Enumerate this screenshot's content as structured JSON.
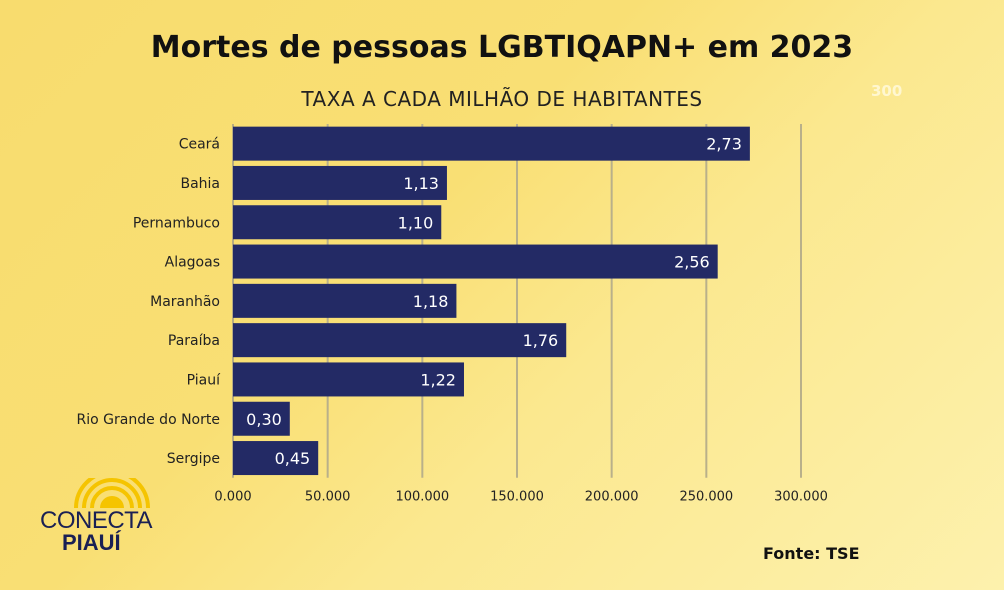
{
  "header": {
    "title": "Mortes de pessoas LGBTIQAPN+ em 2023",
    "subtitle": "TAXA A CADA MILHÃO DE HABITANTES",
    "faint_label": "300"
  },
  "chart_data": {
    "type": "bar",
    "orientation": "horizontal",
    "title": "Mortes de pessoas LGBTIQAPN+ em 2023",
    "subtitle": "TAXA A CADA MILHÃO DE HABITANTES",
    "categories": [
      "Ceará",
      "Bahia",
      "Pernambuco",
      "Alagoas",
      "Maranhão",
      "Paraíba",
      "Piauí",
      "Rio Grande do Norte",
      "Sergipe"
    ],
    "values": [
      2.73,
      1.13,
      1.1,
      2.56,
      1.18,
      1.76,
      1.22,
      0.3,
      0.45
    ],
    "data_labels": [
      "2,73",
      "1,13",
      "1,10",
      "2,56",
      "1,18",
      "1,76",
      "1,22",
      "0,30",
      "0,45"
    ],
    "xlim": [
      0,
      3
    ],
    "x_ticks": [
      "0.000",
      "50.000",
      "100.000",
      "150.000",
      "200.000",
      "250.000",
      "300.000"
    ],
    "grid": true,
    "bar_color": "#232a65",
    "label_color": "#ffffff"
  },
  "logo": {
    "line1": "CONECTA",
    "line2": "PIAUÍ"
  },
  "source": "Fonte: TSE"
}
